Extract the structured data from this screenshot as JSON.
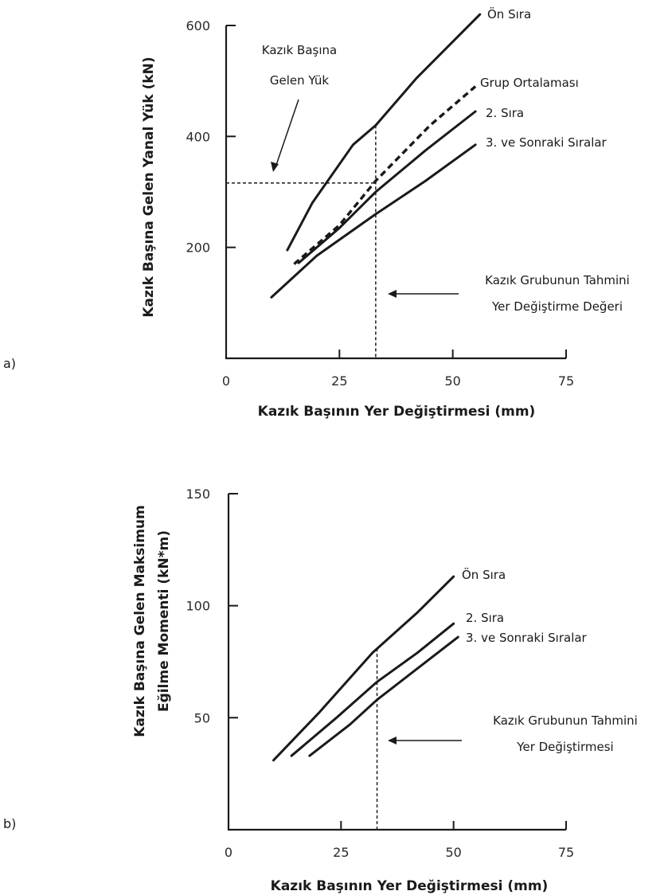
{
  "chart_data": [
    {
      "type": "line",
      "panel_label": "a)",
      "xlabel": "Kazık Başının Yer Değiştirmesi (mm)",
      "ylabel": "Kazık Başına Gelen Yanal Yük (kN)",
      "xlim": [
        0,
        75
      ],
      "ylim": [
        0,
        600
      ],
      "x_ticks": [
        0,
        25,
        50,
        75
      ],
      "y_ticks": [
        200,
        400,
        600
      ],
      "series": [
        {
          "name": "Ön Sıra",
          "style": "solid",
          "points": [
            [
              13.5,
              195
            ],
            [
              19,
              280
            ],
            [
              28,
              385
            ],
            [
              33,
              420
            ],
            [
              42,
              505
            ],
            [
              56,
              620
            ]
          ]
        },
        {
          "name": "Grup Ortalaması",
          "style": "dashed",
          "points": [
            [
              15,
              170
            ],
            [
              25,
              240
            ],
            [
              33,
              320
            ],
            [
              45,
              420
            ],
            [
              55,
              490
            ]
          ]
        },
        {
          "name": "2. Sıra",
          "style": "solid",
          "points": [
            [
              16,
              172
            ],
            [
              25,
              235
            ],
            [
              33,
              300
            ],
            [
              44,
              375
            ],
            [
              55,
              445
            ]
          ]
        },
        {
          "name": "3. ve Sonraki Sıralar",
          "style": "solid",
          "points": [
            [
              10,
              110
            ],
            [
              20,
              185
            ],
            [
              33,
              260
            ],
            [
              44,
              320
            ],
            [
              55,
              385
            ]
          ]
        }
      ],
      "annotations": [
        {
          "text": [
            "Kazık Başına",
            "Gelen Yük"
          ],
          "value_y": 316
        },
        {
          "text": [
            "Kazık Grubunun Tahmini",
            "Yer Değiştirme Değeri"
          ],
          "value_x": 33
        }
      ]
    },
    {
      "type": "line",
      "panel_label": "b)",
      "xlabel": "Kazık Başının Yer Değiştirmesi (mm)",
      "ylabel": [
        "Kazık Başına Gelen Maksimum",
        "Eğilme Momenti (kN*m)"
      ],
      "xlim": [
        0,
        75
      ],
      "ylim": [
        0,
        150
      ],
      "x_ticks": [
        0,
        25,
        50,
        75
      ],
      "y_ticks": [
        50,
        100,
        150
      ],
      "series": [
        {
          "name": "Ön Sıra",
          "style": "solid",
          "points": [
            [
              10,
              31
            ],
            [
              20,
              52
            ],
            [
              32,
              79
            ],
            [
              42,
              97
            ],
            [
              50,
              113
            ]
          ]
        },
        {
          "name": "2. Sıra",
          "style": "solid",
          "points": [
            [
              14,
              33
            ],
            [
              24,
              50
            ],
            [
              33,
              66
            ],
            [
              42,
              79
            ],
            [
              50,
              92
            ]
          ]
        },
        {
          "name": "3. ve Sonraki Sıralar",
          "style": "solid",
          "points": [
            [
              18,
              33
            ],
            [
              27,
              47
            ],
            [
              33,
              58
            ],
            [
              42,
              72
            ],
            [
              51,
              86
            ]
          ]
        }
      ],
      "annotations": [
        {
          "text": [
            "Kazık Grubunun Tahmini",
            "Yer Değiştirmesi"
          ],
          "value_x": 33
        }
      ]
    }
  ]
}
